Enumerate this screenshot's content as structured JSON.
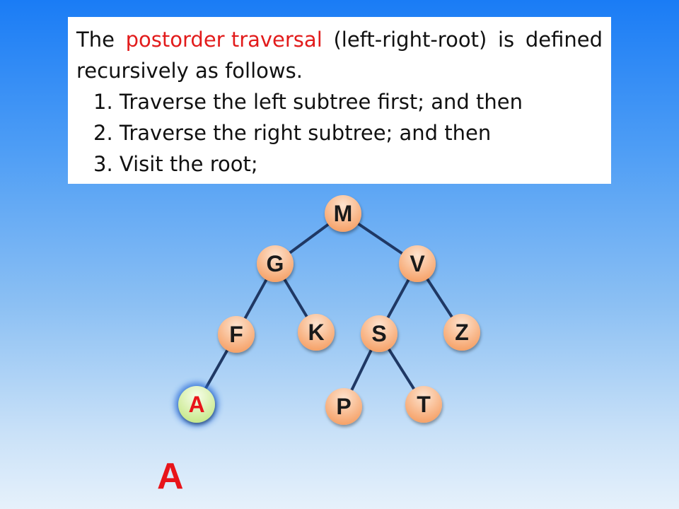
{
  "definition": {
    "intro_before": "The",
    "highlight": "postorder traversal",
    "intro_after_1": "(left-right-root)",
    "intro_after_2": "is",
    "intro_after_3": "defined",
    "intro_line2": "recursively as follows.",
    "steps": [
      "1. Traverse the left subtree first; and then",
      "2. Traverse the right subtree; and then",
      "3. Visit the root;"
    ]
  },
  "tree": {
    "nodes": [
      {
        "id": "M",
        "label": "M",
        "state": "normal"
      },
      {
        "id": "G",
        "label": "G",
        "state": "normal"
      },
      {
        "id": "V",
        "label": "V",
        "state": "normal"
      },
      {
        "id": "F",
        "label": "F",
        "state": "normal"
      },
      {
        "id": "K",
        "label": "K",
        "state": "normal"
      },
      {
        "id": "S",
        "label": "S",
        "state": "normal"
      },
      {
        "id": "Z",
        "label": "Z",
        "state": "normal"
      },
      {
        "id": "A",
        "label": "A",
        "state": "current"
      },
      {
        "id": "P",
        "label": "P",
        "state": "normal"
      },
      {
        "id": "T",
        "label": "T",
        "state": "normal"
      }
    ],
    "edges": [
      [
        "M",
        "G"
      ],
      [
        "M",
        "V"
      ],
      [
        "G",
        "F"
      ],
      [
        "G",
        "K"
      ],
      [
        "V",
        "S"
      ],
      [
        "V",
        "Z"
      ],
      [
        "F",
        "A"
      ],
      [
        "S",
        "P"
      ],
      [
        "S",
        "T"
      ]
    ],
    "colors": {
      "node_fill": "#f6a36a",
      "node_fill_light": "#fde3cf",
      "current_fill": "#d6f0a6",
      "current_fill_light": "#f6fde9",
      "current_glow": "#2f6fd8",
      "current_text": "#e8141a",
      "edge": "#1f3864",
      "text": "#1a1a1a"
    }
  },
  "output": {
    "sequence": "A"
  }
}
